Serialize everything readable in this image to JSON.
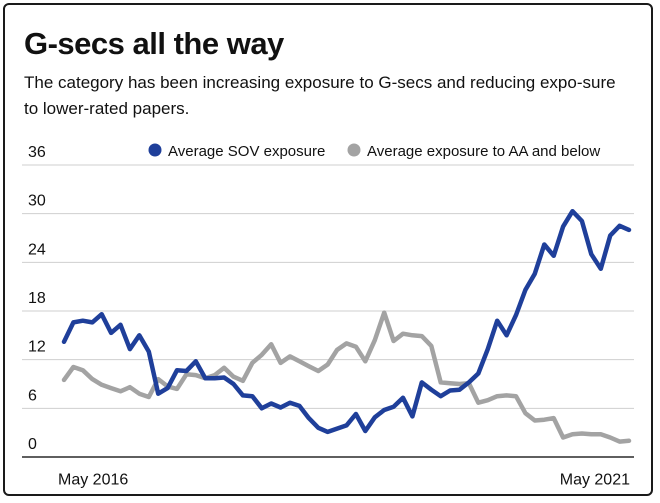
{
  "title": "G-secs all the way",
  "subtitle": "The category has been increasing exposure to G-secs and reducing expo-sure to lower-rated papers.",
  "colors": {
    "sov": "#1f3f9a",
    "aa": "#a3a3a3",
    "grid": "#cfcfcf",
    "axis": "#2a2a2a",
    "text": "#111111"
  },
  "chart_data": {
    "type": "line",
    "x_start_label": "May 2016",
    "x_end_label": "May 2021",
    "ylim": [
      0,
      36
    ],
    "yticks": [
      0,
      6,
      12,
      18,
      24,
      30,
      36
    ],
    "grid": "horizontal",
    "legend_position": "top-right",
    "series": [
      {
        "name": "Average SOV exposure",
        "color": "#1f3f9a",
        "values": [
          14.2,
          16.6,
          16.8,
          16.6,
          17.6,
          15.3,
          16.3,
          13.3,
          15.0,
          13.0,
          7.8,
          8.5,
          10.7,
          10.6,
          11.8,
          9.7,
          9.7,
          9.8,
          9.0,
          7.6,
          7.5,
          6.0,
          6.6,
          6.1,
          6.7,
          6.3,
          4.8,
          3.6,
          3.1,
          3.5,
          3.9,
          5.3,
          3.2,
          4.9,
          5.8,
          6.2,
          7.3,
          5.0,
          9.2,
          8.3,
          7.5,
          8.2,
          8.3,
          9.2,
          10.3,
          13.3,
          16.8,
          15.0,
          17.5,
          20.6,
          22.6,
          26.2,
          24.8,
          28.4,
          30.3,
          29.1,
          25.0,
          23.2,
          27.3,
          28.5,
          28.0
        ]
      },
      {
        "name": "Average exposure to AA and below",
        "color": "#a3a3a3",
        "values": [
          9.5,
          11.1,
          10.7,
          9.6,
          8.9,
          8.5,
          8.1,
          8.6,
          7.8,
          7.4,
          9.6,
          8.7,
          8.4,
          10.2,
          10.1,
          9.7,
          10.1,
          11.0,
          9.9,
          9.4,
          11.6,
          12.6,
          13.9,
          11.6,
          12.4,
          11.8,
          11.2,
          10.6,
          11.4,
          13.2,
          14.0,
          13.6,
          11.8,
          14.4,
          17.8,
          14.3,
          15.2,
          15.0,
          14.9,
          13.7,
          9.2,
          9.1,
          9.0,
          9.1,
          6.7,
          7.0,
          7.5,
          7.6,
          7.5,
          5.4,
          4.5,
          4.6,
          4.8,
          2.4,
          2.8,
          2.9,
          2.8,
          2.8,
          2.4,
          1.9,
          2.0
        ]
      }
    ]
  }
}
